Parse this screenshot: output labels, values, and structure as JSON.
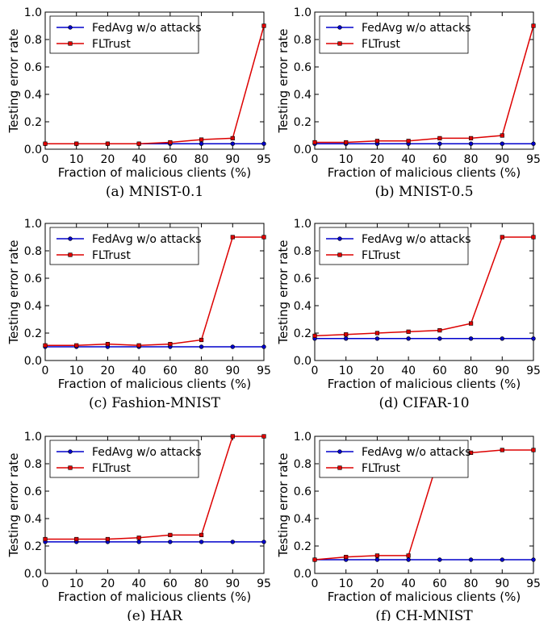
{
  "colors": {
    "fedavg": "#0000cc",
    "fltrust": "#dd0000"
  },
  "chart_data": [
    {
      "type": "line",
      "caption": "(a) MNIST-0.1",
      "xlabel": "Fraction of malicious clients (%)",
      "ylabel": "Testing error rate",
      "x": [
        0,
        10,
        20,
        40,
        60,
        80,
        90,
        95
      ],
      "xticks": [
        "0",
        "10",
        "20",
        "40",
        "60",
        "80",
        "90",
        "95"
      ],
      "ylim": [
        0,
        1.0
      ],
      "yticks": [
        "0.0",
        "0.2",
        "0.4",
        "0.6",
        "0.8",
        "1.0"
      ],
      "legend_position": "top-left",
      "grid": false,
      "series": [
        {
          "name": "FedAvg w/o attacks",
          "values": [
            0.04,
            0.04,
            0.04,
            0.04,
            0.04,
            0.04,
            0.04,
            0.04
          ]
        },
        {
          "name": "FLTrust",
          "values": [
            0.04,
            0.04,
            0.04,
            0.04,
            0.05,
            0.07,
            0.08,
            0.9
          ]
        }
      ]
    },
    {
      "type": "line",
      "caption": "(b) MNIST-0.5",
      "xlabel": "Fraction of malicious clients (%)",
      "ylabel": "Testing error rate",
      "x": [
        0,
        10,
        20,
        40,
        60,
        80,
        90,
        95
      ],
      "xticks": [
        "0",
        "10",
        "20",
        "40",
        "60",
        "80",
        "90",
        "95"
      ],
      "ylim": [
        0,
        1.0
      ],
      "yticks": [
        "0.0",
        "0.2",
        "0.4",
        "0.6",
        "0.8",
        "1.0"
      ],
      "legend_position": "top-left",
      "grid": false,
      "series": [
        {
          "name": "FedAvg w/o attacks",
          "values": [
            0.04,
            0.04,
            0.04,
            0.04,
            0.04,
            0.04,
            0.04,
            0.04
          ]
        },
        {
          "name": "FLTrust",
          "values": [
            0.05,
            0.05,
            0.06,
            0.06,
            0.08,
            0.08,
            0.1,
            0.9
          ]
        }
      ]
    },
    {
      "type": "line",
      "caption": "(c) Fashion-MNIST",
      "xlabel": "Fraction of malicious clients (%)",
      "ylabel": "Testing error rate",
      "x": [
        0,
        10,
        20,
        40,
        60,
        80,
        90,
        95
      ],
      "xticks": [
        "0",
        "10",
        "20",
        "40",
        "60",
        "80",
        "90",
        "95"
      ],
      "ylim": [
        0,
        1.0
      ],
      "yticks": [
        "0.0",
        "0.2",
        "0.4",
        "0.6",
        "0.8",
        "1.0"
      ],
      "legend_position": "top-left",
      "grid": false,
      "series": [
        {
          "name": "FedAvg w/o attacks",
          "values": [
            0.1,
            0.1,
            0.1,
            0.1,
            0.1,
            0.1,
            0.1,
            0.1
          ]
        },
        {
          "name": "FLTrust",
          "values": [
            0.11,
            0.11,
            0.12,
            0.11,
            0.12,
            0.15,
            0.9,
            0.9
          ]
        }
      ]
    },
    {
      "type": "line",
      "caption": "(d) CIFAR-10",
      "xlabel": "Fraction of malicious clients (%)",
      "ylabel": "Testing error rate",
      "x": [
        0,
        10,
        20,
        40,
        60,
        80,
        90,
        95
      ],
      "xticks": [
        "0",
        "10",
        "20",
        "40",
        "60",
        "80",
        "90",
        "95"
      ],
      "ylim": [
        0,
        1.0
      ],
      "yticks": [
        "0.0",
        "0.2",
        "0.4",
        "0.6",
        "0.8",
        "1.0"
      ],
      "legend_position": "top-left",
      "grid": false,
      "series": [
        {
          "name": "FedAvg w/o attacks",
          "values": [
            0.16,
            0.16,
            0.16,
            0.16,
            0.16,
            0.16,
            0.16,
            0.16
          ]
        },
        {
          "name": "FLTrust",
          "values": [
            0.18,
            0.19,
            0.2,
            0.21,
            0.22,
            0.27,
            0.9,
            0.9
          ]
        }
      ]
    },
    {
      "type": "line",
      "caption": "(e) HAR",
      "xlabel": "Fraction of malicious clients (%)",
      "ylabel": "Testing error rate",
      "x": [
        0,
        10,
        20,
        40,
        60,
        80,
        90,
        95
      ],
      "xticks": [
        "0",
        "10",
        "20",
        "40",
        "60",
        "80",
        "90",
        "95"
      ],
      "ylim": [
        0,
        1.0
      ],
      "yticks": [
        "0.0",
        "0.2",
        "0.4",
        "0.6",
        "0.8",
        "1.0"
      ],
      "legend_position": "top-left",
      "grid": false,
      "series": [
        {
          "name": "FedAvg w/o attacks",
          "values": [
            0.23,
            0.23,
            0.23,
            0.23,
            0.23,
            0.23,
            0.23,
            0.23
          ]
        },
        {
          "name": "FLTrust",
          "values": [
            0.25,
            0.25,
            0.25,
            0.26,
            0.28,
            0.28,
            1.0,
            1.0
          ]
        }
      ]
    },
    {
      "type": "line",
      "caption": "(f) CH-MNIST",
      "xlabel": "Fraction of malicious clients (%)",
      "ylabel": "Testing error rate",
      "x": [
        0,
        10,
        20,
        40,
        60,
        80,
        90,
        95
      ],
      "xticks": [
        "0",
        "10",
        "20",
        "40",
        "60",
        "80",
        "90",
        "95"
      ],
      "ylim": [
        0,
        1.0
      ],
      "yticks": [
        "0.0",
        "0.2",
        "0.4",
        "0.6",
        "0.8",
        "1.0"
      ],
      "legend_position": "top-left",
      "grid": false,
      "series": [
        {
          "name": "FedAvg w/o attacks",
          "values": [
            0.1,
            0.1,
            0.1,
            0.1,
            0.1,
            0.1,
            0.1,
            0.1
          ]
        },
        {
          "name": "FLTrust",
          "values": [
            0.1,
            0.12,
            0.13,
            0.13,
            0.87,
            0.88,
            0.9,
            0.9
          ]
        }
      ]
    }
  ]
}
